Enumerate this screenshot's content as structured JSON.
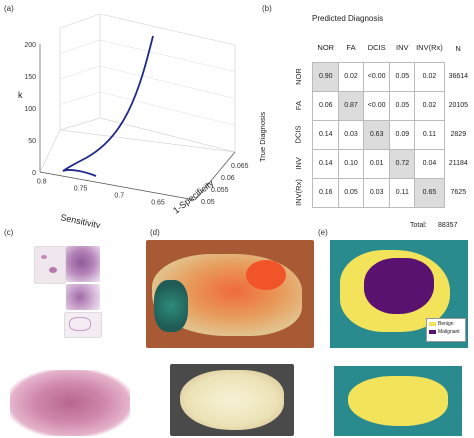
{
  "panels": {
    "a": "(a)",
    "b": "(b)",
    "c": "(c)",
    "d": "(d)",
    "e": "(e)"
  },
  "chart_data": {
    "type": "line",
    "subtype": "3d-curve",
    "zlabel": "k",
    "xlabel": "Sensitivity",
    "ylabel": "1-Specificity",
    "z_ticks": [
      "0",
      "50",
      "100",
      "150",
      "200"
    ],
    "x_ticks": [
      "0.8",
      "0.75",
      "0.7",
      "0.65"
    ],
    "y_ticks": [
      "0.05",
      "0.055",
      "0.06",
      "0.065"
    ],
    "zlim": [
      0,
      200
    ],
    "line_color": "#1f2a8c"
  },
  "confusion": {
    "title": "Predicted Diagnosis",
    "row_axis_label": "True Diagnosis",
    "columns": [
      "NOR",
      "FA",
      "DCIS",
      "INV",
      "INV(Rx)"
    ],
    "n_header": "N",
    "rows": [
      {
        "label": "NOR",
        "values": [
          "0.90",
          "0.02",
          "<0.00",
          "0.05",
          "0.02"
        ],
        "n": "36614"
      },
      {
        "label": "FA",
        "values": [
          "0.06",
          "0.87",
          "<0.00",
          "0.05",
          "0.02"
        ],
        "n": "20105"
      },
      {
        "label": "DCIS",
        "values": [
          "0.14",
          "0.03",
          "0.63",
          "0.09",
          "0.11"
        ],
        "n": "2829"
      },
      {
        "label": "INV",
        "values": [
          "0.14",
          "0.10",
          "0.01",
          "0.72",
          "0.04"
        ],
        "n": "21184"
      },
      {
        "label": "INV(Rx)",
        "values": [
          "0.16",
          "0.05",
          "0.03",
          "0.11",
          "0.65"
        ],
        "n": "7625"
      }
    ],
    "total_label": "Total:",
    "total_value": "88357"
  },
  "legend_e": {
    "items": [
      {
        "label": "Benign",
        "color": "#f2e35a"
      },
      {
        "label": "Malignant",
        "color": "#5a1270"
      }
    ],
    "background": "#2a8b8e"
  }
}
